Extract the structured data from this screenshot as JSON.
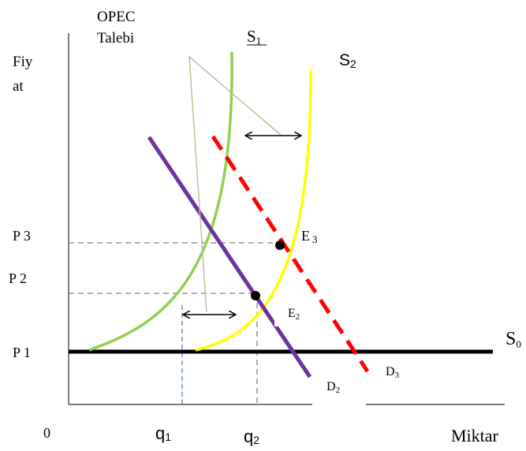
{
  "labels": {
    "y_axis_line1": "Fiy",
    "y_axis_line2": "at",
    "opec_line1": "OPEC",
    "opec_line2": "Talebi",
    "origin": "0",
    "x_axis": "Miktar",
    "p1": "P 1",
    "p2": "P 2",
    "p3": "P 3",
    "q1_base": "q",
    "q1_sub": "1",
    "q2_base": "q",
    "q2_sub": "2",
    "s1_base": "S",
    "s1_sub": "1",
    "s2_base": "S",
    "s2_sub": "2",
    "s0_base": "S",
    "s0_sub": "0",
    "e2_base": "E",
    "e2_sub": "2",
    "e3_base": "E",
    "e3_sub": "3",
    "d2_base": "D",
    "d2_sub": "2",
    "d3_base": "D",
    "d3_sub": "3"
  },
  "colors": {
    "s0": "#000000",
    "s1": "#92d050",
    "s2": "#ffff00",
    "d2": "#7030a0",
    "d3": "#ff0000",
    "opec_pointer": "#c4bd97",
    "guide_lines": "#808080",
    "q1_guide": "#4f81bd"
  }
}
